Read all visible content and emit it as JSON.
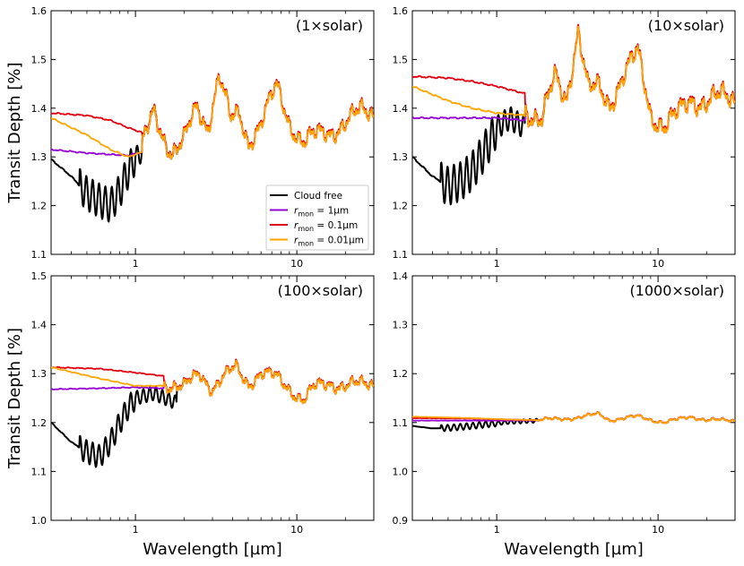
{
  "chart_data": {
    "type": "line",
    "figure_note": "Four-panel grid of transit spectra",
    "xlabel": "Wavelength [µm]",
    "ylabel": "Transit Depth [%]",
    "x_scale": "log",
    "xlim": [
      0.3,
      30
    ],
    "x_ticks": [
      1,
      10
    ],
    "x_tick_labels": [
      "1",
      "10"
    ],
    "series_styles": [
      {
        "key": "cloud_free",
        "name": "Cloud free",
        "color": "#000000"
      },
      {
        "key": "rmon_1",
        "name": "r_mon = 1µm",
        "color": "#9400d3"
      },
      {
        "key": "rmon_01",
        "name": "r_mon = 0.1µm",
        "color": "#e00010"
      },
      {
        "key": "rmon_001",
        "name": "r_mon = 0.01µm",
        "color": "#ffa500"
      }
    ],
    "legend": {
      "placement": "lower-right of top-left panel",
      "entries": [
        {
          "text": "Cloud free",
          "sub": "",
          "rest": ""
        },
        {
          "text": "r",
          "sub": "mon",
          "rest": " = 1µm"
        },
        {
          "text": "r",
          "sub": "mon",
          "rest": " = 0.1µm"
        },
        {
          "text": "r",
          "sub": "mon",
          "rest": " = 0.01µm"
        }
      ]
    },
    "panels": [
      {
        "label": "(1×solar)",
        "ylim": [
          1.1,
          1.6
        ],
        "y_ticks": [
          1.1,
          1.2,
          1.3,
          1.4,
          1.5,
          1.6
        ],
        "y_tick_labels": [
          "1.1",
          "1.2",
          "1.3",
          "1.4",
          "1.5",
          "1.6"
        ],
        "baseline": {
          "cloud_free": [
            [
              0.3,
              1.295
            ],
            [
              0.4,
              1.26
            ],
            [
              0.5,
              1.225
            ],
            [
              0.6,
              1.21
            ],
            [
              0.7,
              1.2
            ],
            [
              0.8,
              1.23
            ],
            [
              0.9,
              1.27
            ],
            [
              1.0,
              1.3
            ],
            [
              1.1,
              1.31
            ]
          ],
          "rmon_1": [
            [
              0.3,
              1.315
            ],
            [
              0.5,
              1.308
            ],
            [
              0.7,
              1.305
            ],
            [
              0.9,
              1.303
            ],
            [
              1.1,
              1.31
            ]
          ],
          "rmon_01": [
            [
              0.3,
              1.39
            ],
            [
              0.5,
              1.385
            ],
            [
              0.7,
              1.375
            ],
            [
              0.9,
              1.36
            ],
            [
              1.1,
              1.35
            ]
          ],
          "rmon_001": [
            [
              0.3,
              1.38
            ],
            [
              0.5,
              1.345
            ],
            [
              0.7,
              1.315
            ],
            [
              0.9,
              1.3
            ],
            [
              1.1,
              1.31
            ]
          ],
          "common": [
            [
              1.1,
              1.32
            ],
            [
              1.3,
              1.39
            ],
            [
              1.5,
              1.34
            ],
            [
              1.7,
              1.31
            ],
            [
              2.0,
              1.33
            ],
            [
              2.4,
              1.4
            ],
            [
              2.8,
              1.36
            ],
            [
              3.3,
              1.47
            ],
            [
              3.9,
              1.37
            ],
            [
              4.4,
              1.385
            ],
            [
              5.0,
              1.33
            ],
            [
              6.0,
              1.37
            ],
            [
              7.5,
              1.44
            ],
            [
              9,
              1.37
            ],
            [
              11,
              1.33
            ],
            [
              13,
              1.34
            ],
            [
              16,
              1.35
            ],
            [
              20,
              1.37
            ],
            [
              25,
              1.39
            ],
            [
              30,
              1.39
            ]
          ]
        },
        "wiggle_amp": 0.022,
        "cloud_free_join": 2.1
      },
      {
        "label": "(10×solar)",
        "ylim": [
          1.1,
          1.6
        ],
        "y_ticks": [
          1.1,
          1.2,
          1.3,
          1.4,
          1.5,
          1.6
        ],
        "y_tick_labels": [
          "1.1",
          "1.2",
          "1.3",
          "1.4",
          "1.5",
          "1.6"
        ],
        "baseline": {
          "cloud_free": [
            [
              0.3,
              1.3
            ],
            [
              0.4,
              1.26
            ],
            [
              0.5,
              1.24
            ],
            [
              0.6,
              1.25
            ],
            [
              0.7,
              1.27
            ],
            [
              0.8,
              1.3
            ],
            [
              0.9,
              1.33
            ],
            [
              1.0,
              1.36
            ],
            [
              1.2,
              1.38
            ],
            [
              1.5,
              1.36
            ]
          ],
          "rmon_1": [
            [
              0.3,
              1.38
            ],
            [
              0.6,
              1.38
            ],
            [
              1.0,
              1.38
            ],
            [
              1.5,
              1.375
            ]
          ],
          "rmon_01": [
            [
              0.3,
              1.465
            ],
            [
              0.5,
              1.462
            ],
            [
              0.7,
              1.455
            ],
            [
              1.0,
              1.445
            ],
            [
              1.5,
              1.43
            ]
          ],
          "rmon_001": [
            [
              0.3,
              1.445
            ],
            [
              0.5,
              1.415
            ],
            [
              0.7,
              1.4
            ],
            [
              1.0,
              1.39
            ],
            [
              1.5,
              1.385
            ]
          ],
          "common": [
            [
              1.5,
              1.4
            ],
            [
              1.9,
              1.37
            ],
            [
              2.3,
              1.46
            ],
            [
              2.7,
              1.42
            ],
            [
              3.2,
              1.56
            ],
            [
              3.7,
              1.43
            ],
            [
              4.3,
              1.44
            ],
            [
              5,
              1.41
            ],
            [
              6,
              1.46
            ],
            [
              7.5,
              1.51
            ],
            [
              9,
              1.39
            ],
            [
              11,
              1.36
            ],
            [
              13,
              1.38
            ],
            [
              16,
              1.42
            ],
            [
              20,
              1.41
            ],
            [
              25,
              1.42
            ],
            [
              30,
              1.42
            ]
          ]
        },
        "wiggle_amp": 0.025,
        "cloud_free_join": 2.2
      },
      {
        "label": "(100×solar)",
        "ylim": [
          1.0,
          1.5
        ],
        "y_ticks": [
          1.0,
          1.1,
          1.2,
          1.3,
          1.4,
          1.5
        ],
        "y_tick_labels": [
          "1.0",
          "1.1",
          "1.2",
          "1.3",
          "1.4",
          "1.5"
        ],
        "baseline": {
          "cloud_free": [
            [
              0.3,
              1.2
            ],
            [
              0.4,
              1.16
            ],
            [
              0.5,
              1.14
            ],
            [
              0.6,
              1.13
            ],
            [
              0.7,
              1.16
            ],
            [
              0.8,
              1.2
            ],
            [
              0.9,
              1.23
            ],
            [
              1.0,
              1.25
            ],
            [
              1.3,
              1.26
            ],
            [
              1.8,
              1.24
            ]
          ],
          "rmon_1": [
            [
              0.3,
              1.268
            ],
            [
              0.6,
              1.27
            ],
            [
              1.0,
              1.272
            ],
            [
              1.5,
              1.27
            ]
          ],
          "rmon_01": [
            [
              0.3,
              1.313
            ],
            [
              0.6,
              1.31
            ],
            [
              1.0,
              1.302
            ],
            [
              1.5,
              1.295
            ]
          ],
          "rmon_001": [
            [
              0.3,
              1.313
            ],
            [
              0.6,
              1.29
            ],
            [
              1.0,
              1.275
            ],
            [
              1.5,
              1.275
            ]
          ],
          "common": [
            [
              1.5,
              1.28
            ],
            [
              2.0,
              1.27
            ],
            [
              2.5,
              1.3
            ],
            [
              3.0,
              1.27
            ],
            [
              3.5,
              1.29
            ],
            [
              4.2,
              1.31
            ],
            [
              5,
              1.28
            ],
            [
              6,
              1.3
            ],
            [
              7.5,
              1.29
            ],
            [
              9,
              1.27
            ],
            [
              11,
              1.245
            ],
            [
              13,
              1.27
            ],
            [
              16,
              1.28
            ],
            [
              20,
              1.275
            ],
            [
              25,
              1.275
            ],
            [
              30,
              1.28
            ]
          ]
        },
        "wiggle_amp": 0.015,
        "cloud_free_join": 2.1
      },
      {
        "label": "(1000×solar)",
        "ylim": [
          0.9,
          1.4
        ],
        "y_ticks": [
          0.9,
          1.0,
          1.1,
          1.2,
          1.3,
          1.4
        ],
        "y_tick_labels": [
          "0.9",
          "1.0",
          "1.1",
          "1.2",
          "1.3",
          "1.4"
        ],
        "baseline": {
          "cloud_free": [
            [
              0.3,
              1.093
            ],
            [
              0.4,
              1.088
            ],
            [
              0.5,
              1.089
            ],
            [
              0.7,
              1.093
            ],
            [
              0.9,
              1.097
            ],
            [
              1.2,
              1.101
            ],
            [
              1.8,
              1.104
            ]
          ],
          "rmon_1": [
            [
              0.3,
              1.104
            ],
            [
              0.7,
              1.104
            ],
            [
              1.2,
              1.104
            ],
            [
              1.8,
              1.104
            ]
          ],
          "rmon_01": [
            [
              0.3,
              1.109
            ],
            [
              0.7,
              1.108
            ],
            [
              1.2,
              1.106
            ],
            [
              1.8,
              1.105
            ]
          ],
          "rmon_001": [
            [
              0.3,
              1.112
            ],
            [
              0.7,
              1.109
            ],
            [
              1.2,
              1.106
            ],
            [
              1.8,
              1.105
            ]
          ],
          "common": [
            [
              1.8,
              1.105
            ],
            [
              2.5,
              1.107
            ],
            [
              3.2,
              1.11
            ],
            [
              4.3,
              1.117
            ],
            [
              5,
              1.105
            ],
            [
              6,
              1.108
            ],
            [
              7.5,
              1.112
            ],
            [
              9,
              1.106
            ],
            [
              11,
              1.1
            ],
            [
              13,
              1.105
            ],
            [
              16,
              1.112
            ],
            [
              20,
              1.105
            ],
            [
              25,
              1.104
            ],
            [
              30,
              1.104
            ]
          ]
        },
        "wiggle_amp": 0.004,
        "cloud_free_join": 1.8
      }
    ]
  }
}
